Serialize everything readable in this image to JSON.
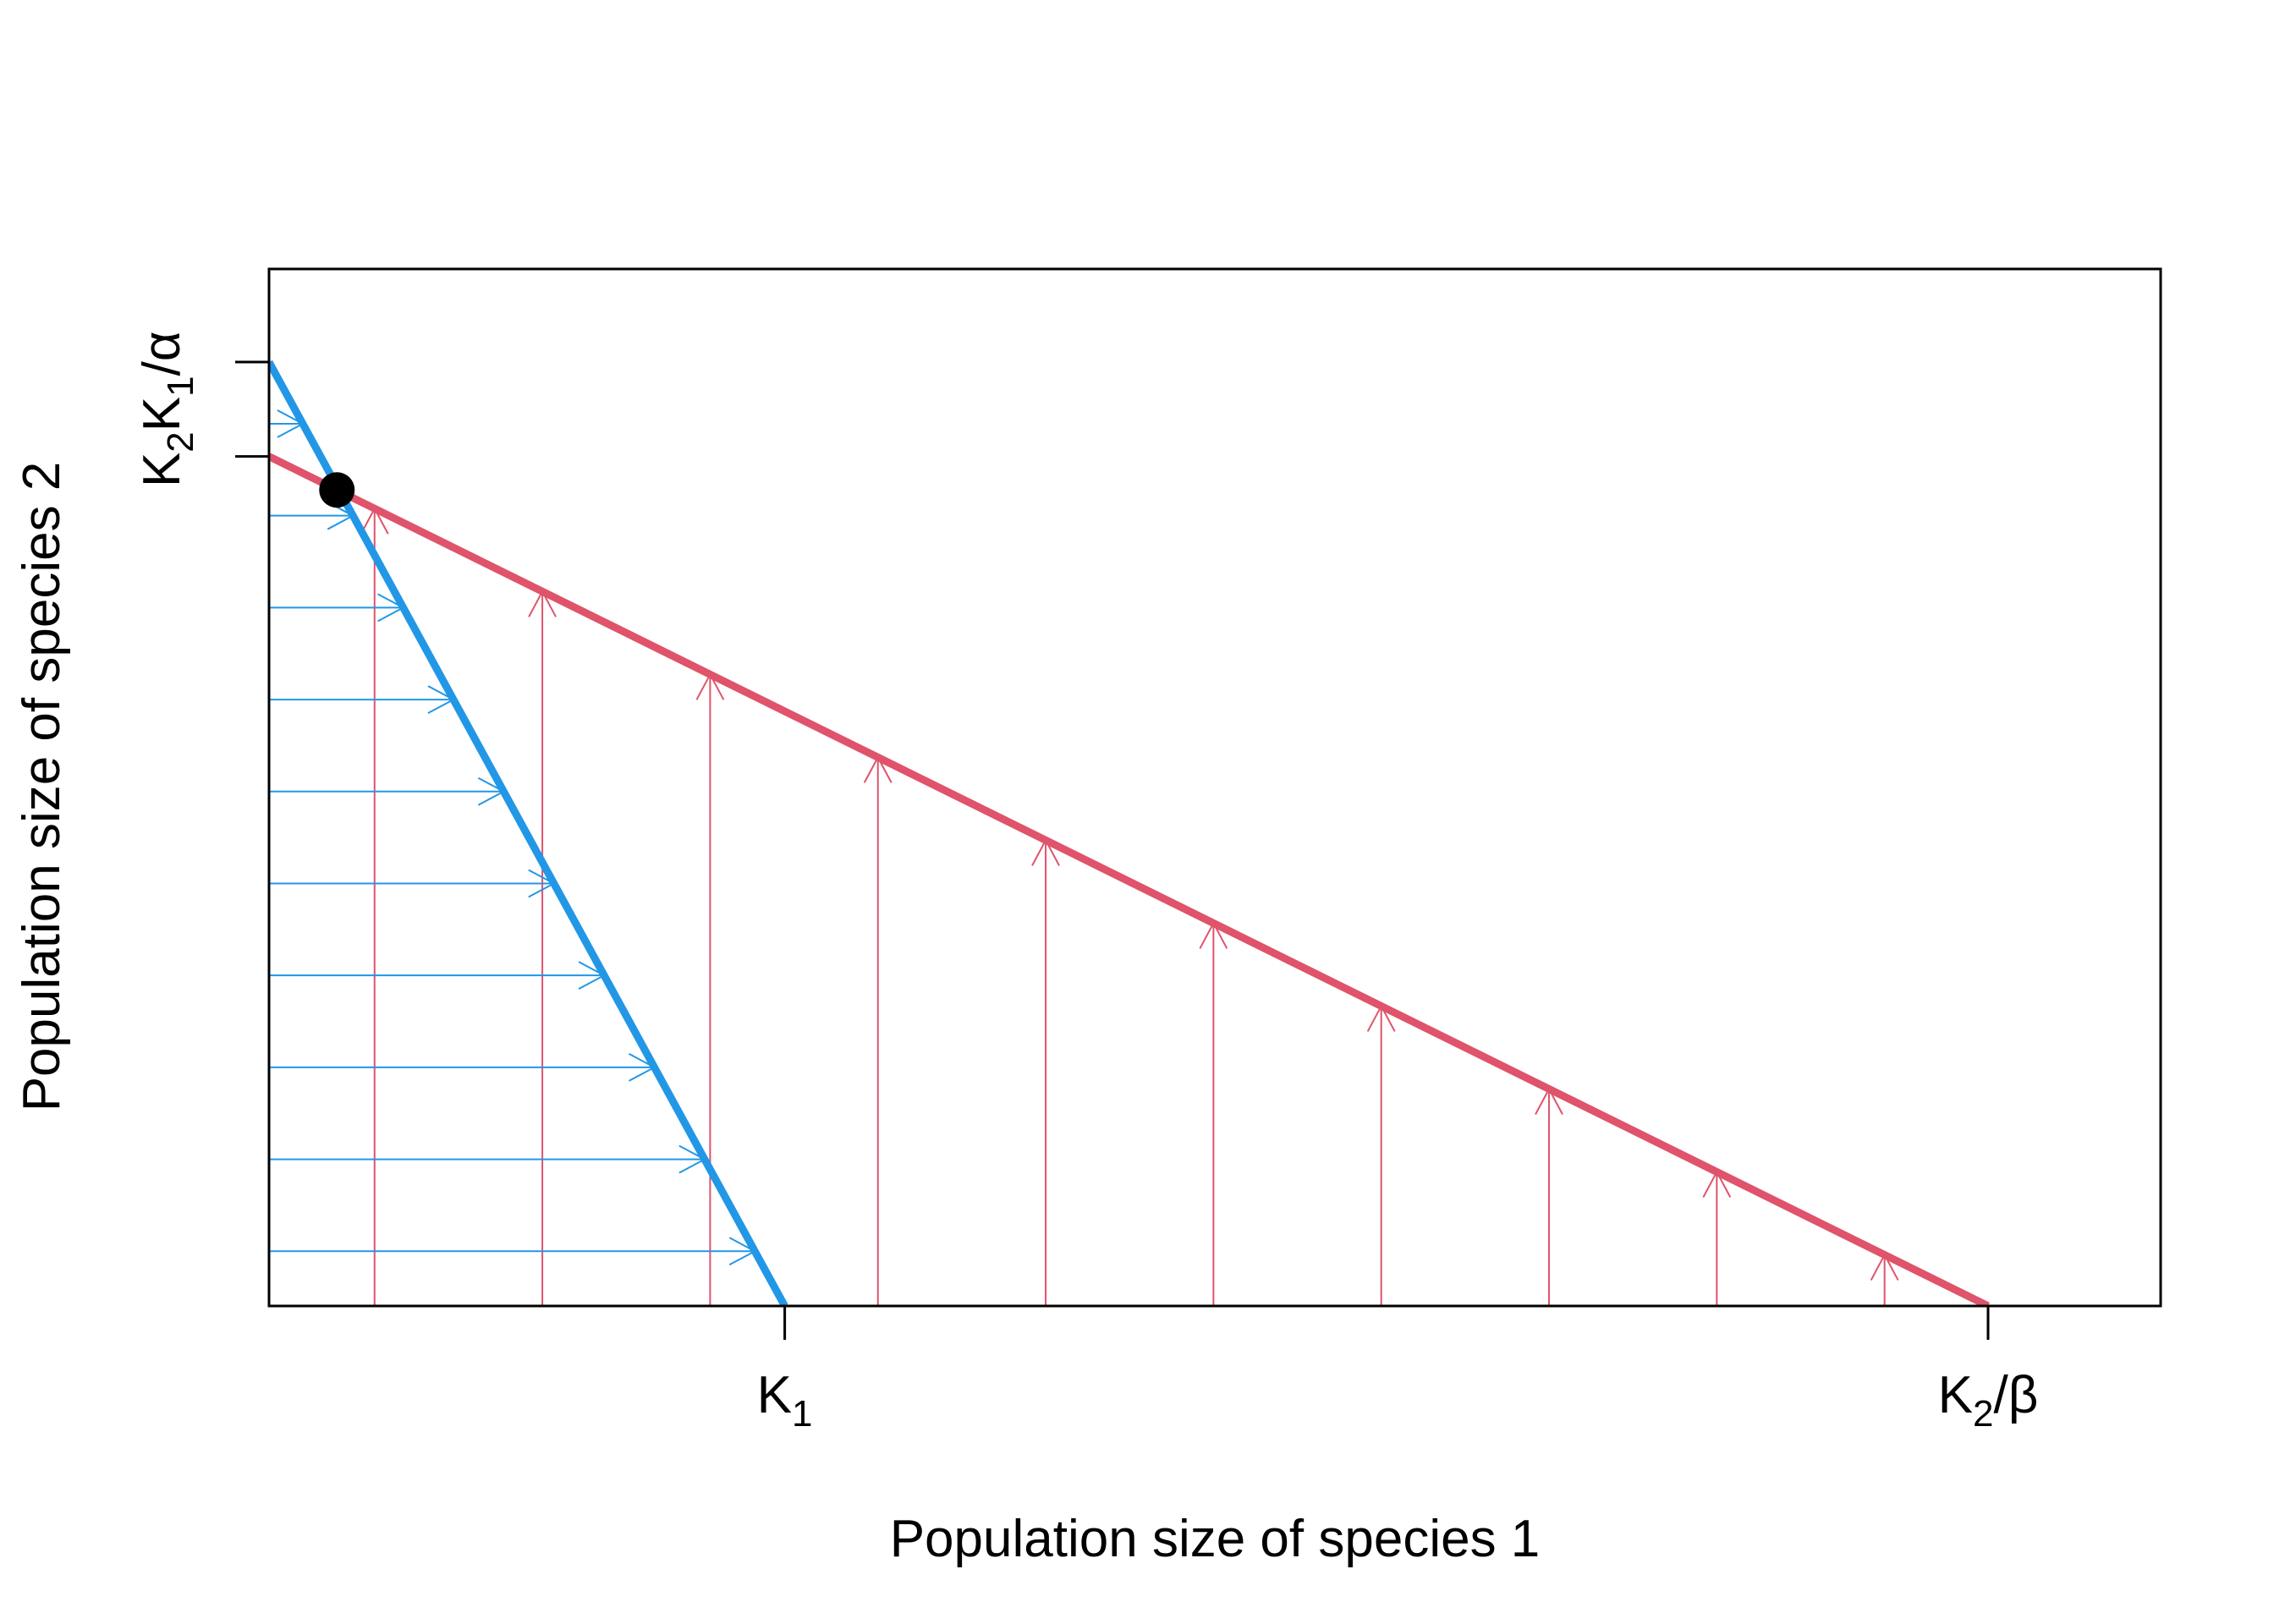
{
  "chart_data": {
    "type": "line",
    "title": "",
    "xlabel": "Population size of species 1",
    "ylabel": "Population size of species 2",
    "xlim": [
      0,
      1.1
    ],
    "ylim": [
      0,
      1
    ],
    "grid": false,
    "colors": {
      "species1": "#2297e6",
      "species2": "#df536b",
      "equilibrium": "#000000",
      "axes": "#000000"
    },
    "x_ticks": [
      {
        "name": "x-tick-k1",
        "value": 0.3,
        "main": "K",
        "sub": "1",
        "after": ""
      },
      {
        "name": "x-tick-k2-beta",
        "value": 1.0,
        "main": "K",
        "sub": "2",
        "after": "/β"
      }
    ],
    "y_ticks": [
      {
        "name": "y-tick-k2",
        "value": 0.9,
        "main": "K",
        "sub": "2",
        "after": ""
      },
      {
        "name": "y-tick-k1-alpha",
        "value": 1.0,
        "main": "K",
        "sub": "1",
        "after": "/α"
      }
    ],
    "series": [
      {
        "name": "Species 1 isocline",
        "color": "#2297e6",
        "x": [
          0,
          0.3
        ],
        "y": [
          1.0,
          0.0
        ]
      },
      {
        "name": "Species 2 isocline",
        "color": "#df536b",
        "x": [
          0,
          1.0
        ],
        "y": [
          0.9,
          0.0
        ]
      }
    ],
    "vector_field": {
      "species1_horizontal_arrows": {
        "color": "#2297e6",
        "y_start": 0.058,
        "y_step": 0.0974,
        "count": 10
      },
      "species2_vertical_arrows": {
        "color": "#df536b",
        "x_start": 0.0614,
        "x_step": 0.0976,
        "count": 10
      }
    },
    "equilibrium_point": {
      "x": 0.0395,
      "y": 0.8645
    }
  }
}
